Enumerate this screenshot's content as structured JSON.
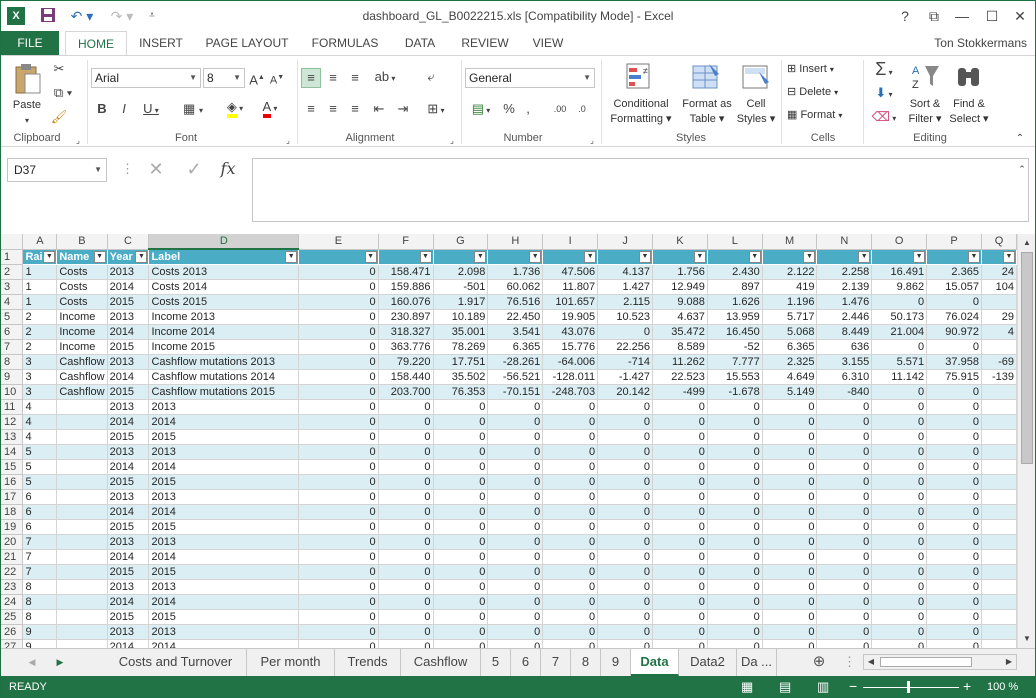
{
  "window": {
    "title": "dashboard_GL_B0022215.xls  [Compatibility Mode] - Excel",
    "user": "Ton Stokkermans",
    "controls": [
      "?",
      "⧉",
      "—",
      "☐",
      "✕"
    ]
  },
  "ribbon_tabs": [
    "FILE",
    "HOME",
    "INSERT",
    "PAGE LAYOUT",
    "FORMULAS",
    "DATA",
    "REVIEW",
    "VIEW"
  ],
  "ribbon": {
    "clipboard": {
      "paste": "Paste",
      "label": "Clipboard"
    },
    "font": {
      "name": "Arial",
      "size": "8",
      "label": "Font"
    },
    "alignment": {
      "label": "Alignment"
    },
    "number": {
      "format": "General",
      "label": "Number"
    },
    "styles": {
      "conditional_1": "Conditional",
      "conditional_2": "Formatting",
      "format_as_1": "Format as",
      "format_as_2": "Table",
      "cell_styles_1": "Cell",
      "cell_styles_2": "Styles",
      "label": "Styles"
    },
    "cells": {
      "insert": "Insert",
      "delete": "Delete",
      "format": "Format",
      "label": "Cells"
    },
    "editing": {
      "sort_1": "Sort &",
      "sort_2": "Filter",
      "find_1": "Find &",
      "find_2": "Select",
      "label": "Editing"
    }
  },
  "formula_bar": {
    "name_box": "D37",
    "formula": ""
  },
  "columns": [
    "A",
    "B",
    "C",
    "D",
    "E",
    "F",
    "G",
    "H",
    "I",
    "J",
    "K",
    "L",
    "M",
    "N",
    "O",
    "P",
    "Q"
  ],
  "header_row": [
    "Rai",
    "Name",
    "Year",
    "Label",
    "",
    "",
    "",
    "",
    "",
    "",
    "",
    "",
    "",
    "",
    "",
    "",
    ""
  ],
  "rows": [
    [
      "1",
      "Costs",
      "2013",
      "Costs 2013",
      "0",
      "158.471",
      "2.098",
      "1.736",
      "47.506",
      "4.137",
      "1.756",
      "2.430",
      "2.122",
      "2.258",
      "16.491",
      "2.365",
      "24"
    ],
    [
      "1",
      "Costs",
      "2014",
      "Costs 2014",
      "0",
      "159.886",
      "-501",
      "60.062",
      "11.807",
      "1.427",
      "12.949",
      "897",
      "419",
      "2.139",
      "9.862",
      "15.057",
      "104"
    ],
    [
      "1",
      "Costs",
      "2015",
      "Costs 2015",
      "0",
      "160.076",
      "1.917",
      "76.516",
      "101.657",
      "2.115",
      "9.088",
      "1.626",
      "1.196",
      "1.476",
      "0",
      "0",
      ""
    ],
    [
      "2",
      "Income",
      "2013",
      "Income 2013",
      "0",
      "230.897",
      "10.189",
      "22.450",
      "19.905",
      "10.523",
      "4.637",
      "13.959",
      "5.717",
      "2.446",
      "50.173",
      "76.024",
      "29"
    ],
    [
      "2",
      "Income",
      "2014",
      "Income 2014",
      "0",
      "318.327",
      "35.001",
      "3.541",
      "43.076",
      "0",
      "35.472",
      "16.450",
      "5.068",
      "8.449",
      "21.004",
      "90.972",
      "4"
    ],
    [
      "2",
      "Income",
      "2015",
      "Income 2015",
      "0",
      "363.776",
      "78.269",
      "6.365",
      "15.776",
      "22.256",
      "8.589",
      "-52",
      "6.365",
      "636",
      "0",
      "0",
      ""
    ],
    [
      "3",
      "Cashflow",
      "2013",
      "Cashflow mutations 2013",
      "0",
      "79.220",
      "17.751",
      "-28.261",
      "-64.006",
      "-714",
      "11.262",
      "7.777",
      "2.325",
      "3.155",
      "5.571",
      "37.958",
      "-69"
    ],
    [
      "3",
      "Cashflow",
      "2014",
      "Cashflow mutations 2014",
      "0",
      "158.440",
      "35.502",
      "-56.521",
      "-128.011",
      "-1.427",
      "22.523",
      "15.553",
      "4.649",
      "6.310",
      "11.142",
      "75.915",
      "-139"
    ],
    [
      "3",
      "Cashflow",
      "2015",
      "Cashflow mutations 2015",
      "0",
      "203.700",
      "76.353",
      "-70.151",
      "-248.703",
      "20.142",
      "-499",
      "-1.678",
      "5.149",
      "-840",
      "0",
      "0",
      ""
    ],
    [
      "4",
      "",
      "2013",
      "2013",
      "0",
      "0",
      "0",
      "0",
      "0",
      "0",
      "0",
      "0",
      "0",
      "0",
      "0",
      "0",
      ""
    ],
    [
      "4",
      "",
      "2014",
      "2014",
      "0",
      "0",
      "0",
      "0",
      "0",
      "0",
      "0",
      "0",
      "0",
      "0",
      "0",
      "0",
      ""
    ],
    [
      "4",
      "",
      "2015",
      "2015",
      "0",
      "0",
      "0",
      "0",
      "0",
      "0",
      "0",
      "0",
      "0",
      "0",
      "0",
      "0",
      ""
    ],
    [
      "5",
      "",
      "2013",
      "2013",
      "0",
      "0",
      "0",
      "0",
      "0",
      "0",
      "0",
      "0",
      "0",
      "0",
      "0",
      "0",
      ""
    ],
    [
      "5",
      "",
      "2014",
      "2014",
      "0",
      "0",
      "0",
      "0",
      "0",
      "0",
      "0",
      "0",
      "0",
      "0",
      "0",
      "0",
      ""
    ],
    [
      "5",
      "",
      "2015",
      "2015",
      "0",
      "0",
      "0",
      "0",
      "0",
      "0",
      "0",
      "0",
      "0",
      "0",
      "0",
      "0",
      ""
    ],
    [
      "6",
      "",
      "2013",
      "2013",
      "0",
      "0",
      "0",
      "0",
      "0",
      "0",
      "0",
      "0",
      "0",
      "0",
      "0",
      "0",
      ""
    ],
    [
      "6",
      "",
      "2014",
      "2014",
      "0",
      "0",
      "0",
      "0",
      "0",
      "0",
      "0",
      "0",
      "0",
      "0",
      "0",
      "0",
      ""
    ],
    [
      "6",
      "",
      "2015",
      "2015",
      "0",
      "0",
      "0",
      "0",
      "0",
      "0",
      "0",
      "0",
      "0",
      "0",
      "0",
      "0",
      ""
    ],
    [
      "7",
      "",
      "2013",
      "2013",
      "0",
      "0",
      "0",
      "0",
      "0",
      "0",
      "0",
      "0",
      "0",
      "0",
      "0",
      "0",
      ""
    ],
    [
      "7",
      "",
      "2014",
      "2014",
      "0",
      "0",
      "0",
      "0",
      "0",
      "0",
      "0",
      "0",
      "0",
      "0",
      "0",
      "0",
      ""
    ],
    [
      "7",
      "",
      "2015",
      "2015",
      "0",
      "0",
      "0",
      "0",
      "0",
      "0",
      "0",
      "0",
      "0",
      "0",
      "0",
      "0",
      ""
    ],
    [
      "8",
      "",
      "2013",
      "2013",
      "0",
      "0",
      "0",
      "0",
      "0",
      "0",
      "0",
      "0",
      "0",
      "0",
      "0",
      "0",
      ""
    ],
    [
      "8",
      "",
      "2014",
      "2014",
      "0",
      "0",
      "0",
      "0",
      "0",
      "0",
      "0",
      "0",
      "0",
      "0",
      "0",
      "0",
      ""
    ],
    [
      "8",
      "",
      "2015",
      "2015",
      "0",
      "0",
      "0",
      "0",
      "0",
      "0",
      "0",
      "0",
      "0",
      "0",
      "0",
      "0",
      ""
    ],
    [
      "9",
      "",
      "2013",
      "2013",
      "0",
      "0",
      "0",
      "0",
      "0",
      "0",
      "0",
      "0",
      "0",
      "0",
      "0",
      "0",
      ""
    ],
    [
      "9",
      "",
      "2014",
      "2014",
      "0",
      "0",
      "0",
      "0",
      "0",
      "0",
      "0",
      "0",
      "0",
      "0",
      "0",
      "0",
      ""
    ]
  ],
  "sheet_tabs": [
    "Costs and Turnover",
    "Per month",
    "Trends",
    "Cashflow",
    "5",
    "6",
    "7",
    "8",
    "9",
    "Data",
    "Data2",
    "Da ..."
  ],
  "active_sheet": "Data",
  "status": {
    "mode": "READY",
    "zoom": "100 %"
  },
  "colors": {
    "accent": "#217346",
    "table_header": "#4bacc6",
    "band": "#daeef3"
  }
}
